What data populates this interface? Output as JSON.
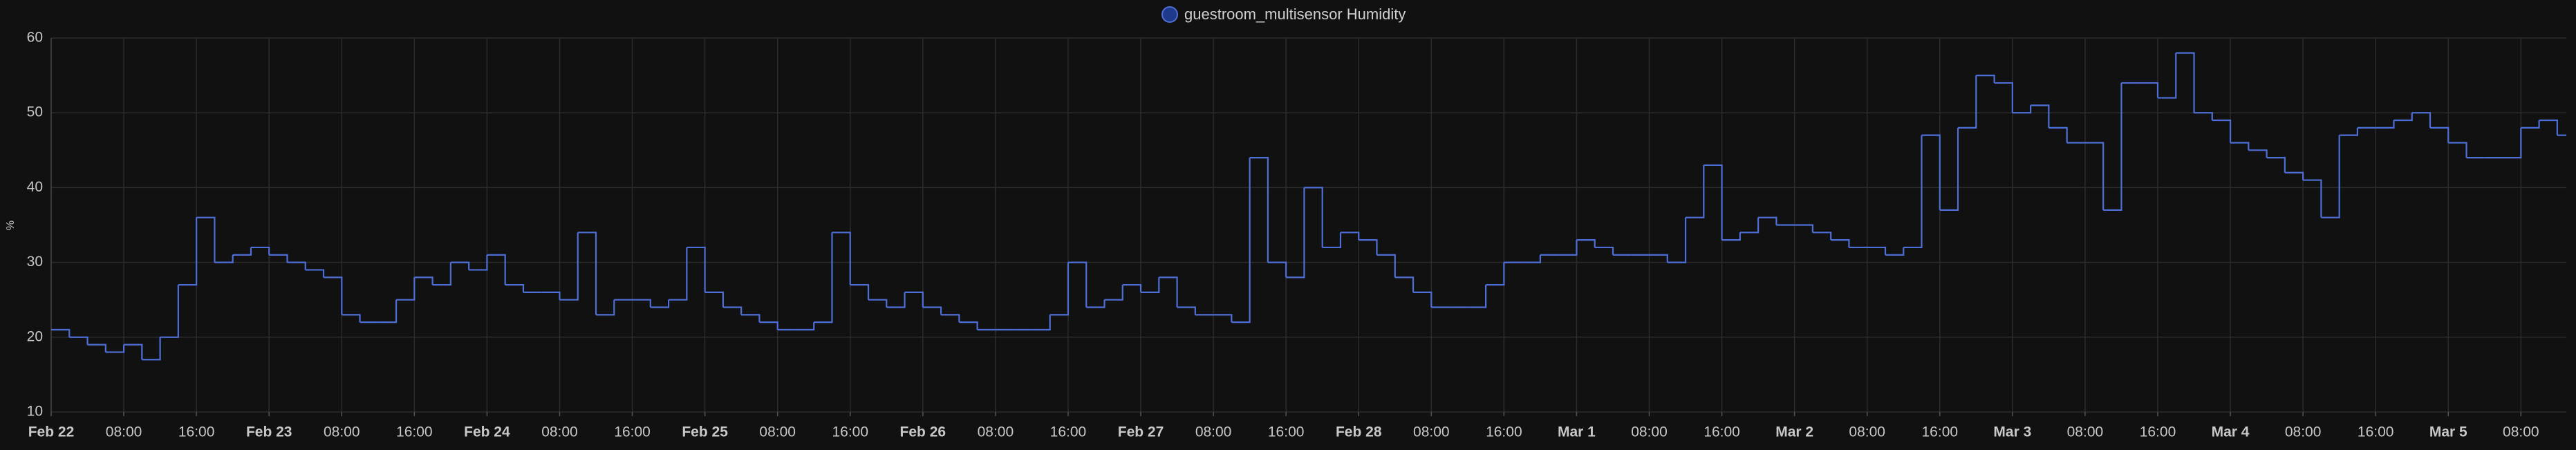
{
  "chart_data": {
    "type": "step-line",
    "legend": "guestroom_multisensor Humidity",
    "y_label": "%",
    "series": [
      {
        "name": "guestroom_multisensor Humidity",
        "color": "#4f6fd8",
        "x": [
          "Feb 22 00:00",
          "Feb 22 02:00",
          "Feb 22 04:00",
          "Feb 22 06:00",
          "Feb 22 08:00",
          "Feb 22 10:00",
          "Feb 22 12:00",
          "Feb 22 14:00",
          "Feb 22 16:00",
          "Feb 22 18:00",
          "Feb 22 20:00",
          "Feb 22 22:00",
          "Feb 23 00:00",
          "Feb 23 02:00",
          "Feb 23 04:00",
          "Feb 23 06:00",
          "Feb 23 08:00",
          "Feb 23 10:00",
          "Feb 23 12:00",
          "Feb 23 14:00",
          "Feb 23 16:00",
          "Feb 23 18:00",
          "Feb 23 20:00",
          "Feb 23 22:00",
          "Feb 24 00:00",
          "Feb 24 02:00",
          "Feb 24 04:00",
          "Feb 24 06:00",
          "Feb 24 08:00",
          "Feb 24 10:00",
          "Feb 24 12:00",
          "Feb 24 14:00",
          "Feb 24 16:00",
          "Feb 24 18:00",
          "Feb 24 20:00",
          "Feb 24 22:00",
          "Feb 25 00:00",
          "Feb 25 02:00",
          "Feb 25 04:00",
          "Feb 25 06:00",
          "Feb 25 08:00",
          "Feb 25 10:00",
          "Feb 25 12:00",
          "Feb 25 14:00",
          "Feb 25 16:00",
          "Feb 25 18:00",
          "Feb 25 20:00",
          "Feb 25 22:00",
          "Feb 26 00:00",
          "Feb 26 02:00",
          "Feb 26 04:00",
          "Feb 26 06:00",
          "Feb 26 08:00",
          "Feb 26 10:00",
          "Feb 26 12:00",
          "Feb 26 14:00",
          "Feb 26 16:00",
          "Feb 26 18:00",
          "Feb 26 20:00",
          "Feb 26 22:00",
          "Feb 27 00:00",
          "Feb 27 02:00",
          "Feb 27 04:00",
          "Feb 27 06:00",
          "Feb 27 08:00",
          "Feb 27 10:00",
          "Feb 27 12:00",
          "Feb 27 14:00",
          "Feb 27 16:00",
          "Feb 27 18:00",
          "Feb 27 20:00",
          "Feb 27 22:00",
          "Feb 28 00:00",
          "Feb 28 02:00",
          "Feb 28 04:00",
          "Feb 28 06:00",
          "Feb 28 08:00",
          "Feb 28 10:00",
          "Feb 28 12:00",
          "Feb 28 14:00",
          "Feb 28 16:00",
          "Feb 28 18:00",
          "Feb 28 20:00",
          "Feb 28 22:00",
          "Mar 1 00:00",
          "Mar 1 02:00",
          "Mar 1 04:00",
          "Mar 1 06:00",
          "Mar 1 08:00",
          "Mar 1 10:00",
          "Mar 1 12:00",
          "Mar 1 14:00",
          "Mar 1 16:00",
          "Mar 1 18:00",
          "Mar 1 20:00",
          "Mar 1 22:00",
          "Mar 2 00:00",
          "Mar 2 02:00",
          "Mar 2 04:00",
          "Mar 2 06:00",
          "Mar 2 08:00",
          "Mar 2 10:00",
          "Mar 2 12:00",
          "Mar 2 14:00",
          "Mar 2 16:00",
          "Mar 2 18:00",
          "Mar 2 20:00",
          "Mar 2 22:00",
          "Mar 3 00:00",
          "Mar 3 02:00",
          "Mar 3 04:00",
          "Mar 3 06:00",
          "Mar 3 08:00",
          "Mar 3 10:00",
          "Mar 3 12:00",
          "Mar 3 14:00",
          "Mar 3 16:00",
          "Mar 3 18:00",
          "Mar 3 20:00",
          "Mar 3 22:00",
          "Mar 4 00:00",
          "Mar 4 02:00",
          "Mar 4 04:00",
          "Mar 4 06:00",
          "Mar 4 08:00",
          "Mar 4 10:00",
          "Mar 4 12:00",
          "Mar 4 14:00",
          "Mar 4 16:00",
          "Mar 4 18:00",
          "Mar 4 20:00",
          "Mar 4 22:00",
          "Mar 5 00:00",
          "Mar 5 02:00",
          "Mar 5 04:00",
          "Mar 5 06:00",
          "Mar 5 08:00",
          "Mar 5 10:00",
          "Mar 5 12:00"
        ],
        "values": [
          21,
          20,
          19,
          18,
          19,
          17,
          20,
          27,
          36,
          30,
          31,
          32,
          31,
          30,
          29,
          28,
          23,
          22,
          22,
          25,
          28,
          27,
          30,
          29,
          31,
          27,
          26,
          26,
          25,
          34,
          23,
          25,
          25,
          24,
          25,
          32,
          26,
          24,
          23,
          22,
          21,
          21,
          22,
          34,
          27,
          25,
          24,
          26,
          24,
          23,
          22,
          21,
          21,
          21,
          21,
          23,
          30,
          24,
          25,
          27,
          26,
          28,
          24,
          23,
          23,
          22,
          44,
          30,
          28,
          40,
          32,
          34,
          33,
          31,
          28,
          26,
          24,
          24,
          24,
          27,
          30,
          30,
          31,
          31,
          33,
          32,
          31,
          31,
          31,
          30,
          36,
          43,
          33,
          34,
          36,
          35,
          35,
          34,
          33,
          32,
          32,
          31,
          32,
          47,
          37,
          48,
          55,
          54,
          50,
          51,
          48,
          46,
          46,
          37,
          54,
          54,
          52,
          58,
          50,
          49,
          46,
          45,
          44,
          42,
          41,
          36,
          47,
          48,
          48,
          49,
          50,
          48,
          46,
          44,
          44,
          44,
          48,
          49,
          47
        ]
      }
    ],
    "xlim": [
      "Feb 22 00:00",
      "Mar 5 13:00"
    ],
    "xticks": [
      {
        "value": "Feb 22 00:00",
        "label": "Feb 22"
      },
      {
        "value": "Feb 22 08:00",
        "label": "08:00"
      },
      {
        "value": "Feb 22 16:00",
        "label": "16:00"
      },
      {
        "value": "Feb 23 00:00",
        "label": "Feb 23"
      },
      {
        "value": "Feb 23 08:00",
        "label": "08:00"
      },
      {
        "value": "Feb 23 16:00",
        "label": "16:00"
      },
      {
        "value": "Feb 24 00:00",
        "label": "Feb 24"
      },
      {
        "value": "Feb 24 08:00",
        "label": "08:00"
      },
      {
        "value": "Feb 24 16:00",
        "label": "16:00"
      },
      {
        "value": "Feb 25 00:00",
        "label": "Feb 25"
      },
      {
        "value": "Feb 25 08:00",
        "label": "08:00"
      },
      {
        "value": "Feb 25 16:00",
        "label": "16:00"
      },
      {
        "value": "Feb 26 00:00",
        "label": "Feb 26"
      },
      {
        "value": "Feb 26 08:00",
        "label": "08:00"
      },
      {
        "value": "Feb 26 16:00",
        "label": "16:00"
      },
      {
        "value": "Feb 27 00:00",
        "label": "Feb 27"
      },
      {
        "value": "Feb 27 08:00",
        "label": "08:00"
      },
      {
        "value": "Feb 27 16:00",
        "label": "16:00"
      },
      {
        "value": "Feb 28 00:00",
        "label": "Feb 28"
      },
      {
        "value": "Feb 28 08:00",
        "label": "08:00"
      },
      {
        "value": "Feb 28 16:00",
        "label": "16:00"
      },
      {
        "value": "Mar 1 00:00",
        "label": "Mar 1"
      },
      {
        "value": "Mar 1 08:00",
        "label": "08:00"
      },
      {
        "value": "Mar 1 16:00",
        "label": "16:00"
      },
      {
        "value": "Mar 2 00:00",
        "label": "Mar 2"
      },
      {
        "value": "Mar 2 08:00",
        "label": "08:00"
      },
      {
        "value": "Mar 2 16:00",
        "label": "16:00"
      },
      {
        "value": "Mar 3 00:00",
        "label": "Mar 3"
      },
      {
        "value": "Mar 3 08:00",
        "label": "08:00"
      },
      {
        "value": "Mar 3 16:00",
        "label": "16:00"
      },
      {
        "value": "Mar 4 00:00",
        "label": "Mar 4"
      },
      {
        "value": "Mar 4 08:00",
        "label": "08:00"
      },
      {
        "value": "Mar 4 16:00",
        "label": "16:00"
      },
      {
        "value": "Mar 5 00:00",
        "label": "Mar 5"
      },
      {
        "value": "Mar 5 08:00",
        "label": "08:00"
      }
    ],
    "ylim": [
      10,
      60
    ],
    "yticks": [
      10,
      20,
      30,
      40,
      50,
      60
    ],
    "grid": true
  }
}
